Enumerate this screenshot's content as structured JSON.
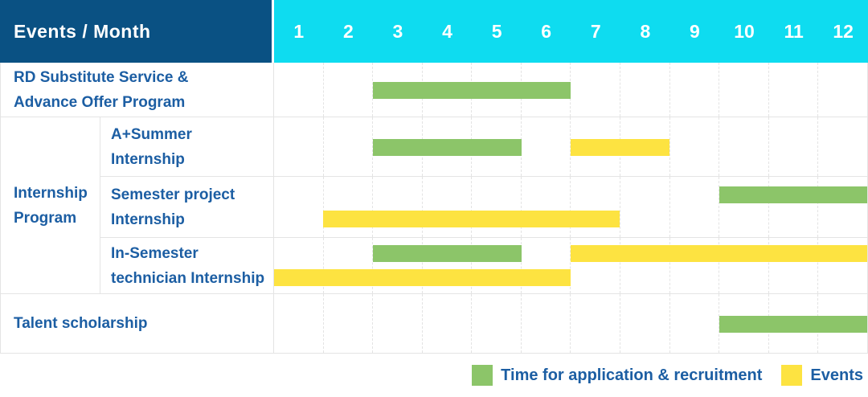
{
  "header": {
    "title": "Events / Month",
    "months": [
      "1",
      "2",
      "3",
      "4",
      "5",
      "6",
      "7",
      "8",
      "9",
      "10",
      "11",
      "12"
    ]
  },
  "row_rd": {
    "lines": [
      "RD Substitute Service &",
      "Advance Offer Program"
    ],
    "bars": [
      {
        "kind": "application",
        "start": 3,
        "end": 6,
        "line": 0
      }
    ]
  },
  "group_internship": {
    "lines": [
      "Internship",
      "Program"
    ]
  },
  "row_summer": {
    "lines": [
      "A+Summer",
      "Internship"
    ],
    "bars": [
      {
        "kind": "application",
        "start": 3,
        "end": 5,
        "line": 0
      },
      {
        "kind": "event",
        "start": 7,
        "end": 8,
        "line": 0
      }
    ]
  },
  "row_semester": {
    "lines": [
      "Semester project",
      "Internship"
    ],
    "bars": [
      {
        "kind": "application",
        "start": 10,
        "end": 12,
        "line": 1
      },
      {
        "kind": "event",
        "start": 2,
        "end": 7,
        "line": 2
      }
    ]
  },
  "row_insem": {
    "lines": [
      "In-Semester",
      "technician Internship"
    ],
    "bars": [
      {
        "kind": "application",
        "start": 3,
        "end": 5,
        "line": 1
      },
      {
        "kind": "event",
        "start": 7,
        "end": 12,
        "line": 1
      },
      {
        "kind": "event",
        "start": 1,
        "end": 6,
        "line": 2
      }
    ]
  },
  "row_talent": {
    "lines": [
      "Talent scholarship"
    ],
    "bars": [
      {
        "kind": "application",
        "start": 10,
        "end": 12,
        "line": 0
      }
    ]
  },
  "legend": {
    "application": "Time for application & recruitment",
    "events": "Events"
  },
  "colors": {
    "header_bg": "#0a5183",
    "months_bg": "#0edcf0",
    "label_text": "#1c5ea3",
    "application_bar": "#8cc569",
    "event_bar": "#fde341",
    "grid_line": "#e3e3e3",
    "row_border": "#e4e4e4"
  },
  "chart_data": {
    "type": "table",
    "title": "Events / Month",
    "x_axis": {
      "label": "Month",
      "ticks": [
        1,
        2,
        3,
        4,
        5,
        6,
        7,
        8,
        9,
        10,
        11,
        12
      ],
      "range": [
        1,
        12
      ]
    },
    "grid": true,
    "legend_position": "bottom-right",
    "legend": [
      "Time for application & recruitment",
      "Events"
    ],
    "rows": [
      {
        "event": "RD Substitute Service & Advance Offer Program",
        "group": null,
        "application_recruitment_months": [
          [
            3,
            6
          ]
        ],
        "events_months": []
      },
      {
        "event": "A+Summer Internship",
        "group": "Internship Program",
        "application_recruitment_months": [
          [
            3,
            5
          ]
        ],
        "events_months": [
          [
            7,
            8
          ]
        ]
      },
      {
        "event": "Semester project Internship",
        "group": "Internship Program",
        "application_recruitment_months": [
          [
            10,
            12
          ]
        ],
        "events_months": [
          [
            2,
            7
          ]
        ]
      },
      {
        "event": "In-Semester technician Internship",
        "group": "Internship Program",
        "application_recruitment_months": [
          [
            3,
            5
          ]
        ],
        "events_months": [
          [
            7,
            12
          ],
          [
            1,
            6
          ]
        ]
      },
      {
        "event": "Talent scholarship",
        "group": null,
        "application_recruitment_months": [
          [
            10,
            12
          ]
        ],
        "events_months": []
      }
    ]
  }
}
